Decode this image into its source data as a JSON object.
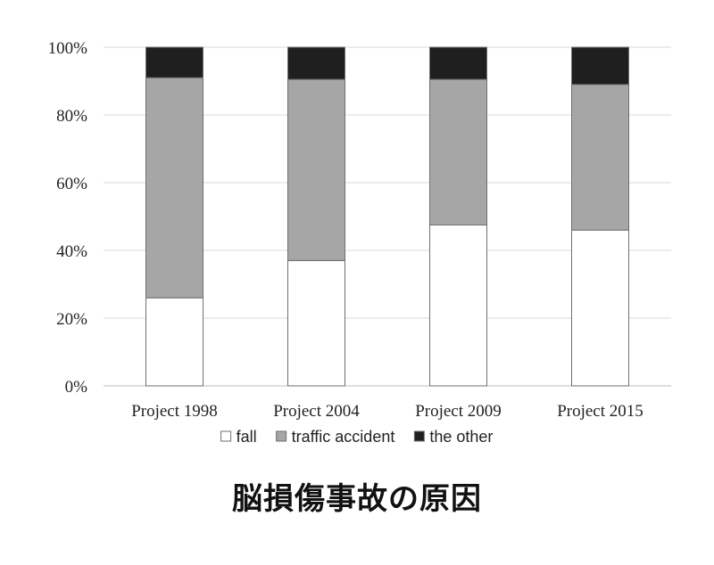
{
  "caption": "脳損傷事故の原因",
  "chart_data": {
    "type": "bar",
    "stacked": true,
    "categories": [
      "Project 1998",
      "Project 2004",
      "Project 2009",
      "Project 2015"
    ],
    "series": [
      {
        "name": "fall",
        "values": [
          26,
          37,
          47.5,
          46
        ],
        "color": "#ffffff"
      },
      {
        "name": "traffic accident",
        "values": [
          65,
          53.5,
          43,
          43
        ],
        "color": "#a6a6a6"
      },
      {
        "name": "the other",
        "values": [
          9,
          9.5,
          9.5,
          11
        ],
        "color": "#1f1f1f"
      }
    ],
    "ylim": [
      0,
      100
    ],
    "yticks": [
      "0%",
      "20%",
      "40%",
      "60%",
      "80%",
      "100%"
    ],
    "grid": true,
    "legend_position": "bottom"
  }
}
